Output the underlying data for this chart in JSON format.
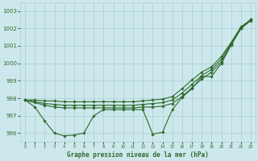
{
  "x": [
    0,
    1,
    2,
    3,
    4,
    5,
    6,
    7,
    8,
    9,
    10,
    11,
    12,
    13,
    14,
    15,
    16,
    17,
    18,
    19,
    20,
    21,
    22,
    23
  ],
  "line_zigzag": [
    997.9,
    997.5,
    996.7,
    996.0,
    995.85,
    995.9,
    996.0,
    997.0,
    997.35,
    997.35,
    997.35,
    997.35,
    997.35,
    995.95,
    996.05,
    997.35,
    998.05,
    998.55,
    999.25,
    999.25,
    1000.0,
    1001.05,
    1002.0,
    1002.45
  ],
  "line_smooth1": [
    997.9,
    997.75,
    997.6,
    997.5,
    997.45,
    997.45,
    997.45,
    997.45,
    997.45,
    997.45,
    997.45,
    997.45,
    997.5,
    997.5,
    997.55,
    997.7,
    998.1,
    998.6,
    999.1,
    999.5,
    1000.1,
    1001.1,
    1002.0,
    1002.5
  ],
  "line_smooth2": [
    997.9,
    997.8,
    997.7,
    997.65,
    997.6,
    997.6,
    997.6,
    997.6,
    997.6,
    997.6,
    997.6,
    997.6,
    997.65,
    997.7,
    997.75,
    997.9,
    998.3,
    998.8,
    999.3,
    999.65,
    1000.25,
    1001.15,
    1002.05,
    1002.5
  ],
  "line_smooth3": [
    997.9,
    997.9,
    997.85,
    997.85,
    997.8,
    997.8,
    997.8,
    997.8,
    997.8,
    997.8,
    997.8,
    997.8,
    997.85,
    997.9,
    997.95,
    998.1,
    998.55,
    999.05,
    999.5,
    999.8,
    1000.4,
    1001.2,
    1002.1,
    1002.5
  ],
  "ylim": [
    995.5,
    1003.5
  ],
  "yticks": [
    996,
    997,
    998,
    999,
    1000,
    1001,
    1002,
    1003
  ],
  "xlabel": "Graphe pression niveau de la mer (hPa)",
  "bg_color": "#cde8ec",
  "grid_color": "#a8cdd2",
  "line_color": "#2d6a2d",
  "title_color": "#2d6a2d"
}
